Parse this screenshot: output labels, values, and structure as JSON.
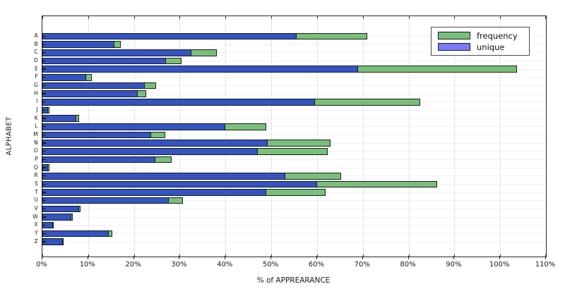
{
  "chart_data": {
    "type": "bar",
    "orientation": "horizontal",
    "title": "",
    "xlabel": "% of APPREARANCE",
    "ylabel": "ALPHABET",
    "xlim": [
      0,
      110
    ],
    "x_tick_labels": [
      "0%",
      "10%",
      "20%",
      "30%",
      "40%",
      "50%",
      "60%",
      "70%",
      "80%",
      "90%",
      "100%",
      "110%"
    ],
    "grid": true,
    "legend_position": "top-right",
    "categories": [
      "A",
      "B",
      "C",
      "D",
      "E",
      "F",
      "G",
      "H",
      "I",
      "J",
      "K",
      "L",
      "M",
      "N",
      "O",
      "P",
      "Q",
      "R",
      "S",
      "T",
      "U",
      "V",
      "W",
      "X",
      "Y",
      "Z"
    ],
    "series": [
      {
        "name": "frequency",
        "color": "#78bf7a",
        "edge_color": "#1c1c1c",
        "values": [
          71.0,
          17.2,
          38.1,
          30.4,
          103.7,
          10.8,
          24.8,
          22.7,
          82.6,
          1.6,
          8.0,
          48.9,
          26.8,
          63.0,
          62.3,
          28.3,
          1.6,
          65.2,
          86.3,
          61.9,
          30.7,
          8.4,
          6.7,
          2.4,
          15.3,
          4.7
        ]
      },
      {
        "name": "unique",
        "color": "#3554c0",
        "edge_color": "#14182e",
        "values": [
          55.5,
          15.8,
          32.6,
          27.0,
          69.0,
          9.6,
          22.3,
          20.9,
          59.5,
          1.3,
          7.4,
          40.0,
          23.7,
          49.2,
          47.1,
          24.7,
          1.3,
          53.0,
          60.0,
          48.9,
          27.6,
          8.0,
          6.3,
          2.3,
          14.5,
          4.5
        ]
      }
    ],
    "legend": {
      "items": [
        {
          "label": "frequency",
          "swatch_color": "#78bf7a"
        },
        {
          "label": "unique",
          "swatch_color": "#7b7bf5"
        }
      ]
    }
  }
}
